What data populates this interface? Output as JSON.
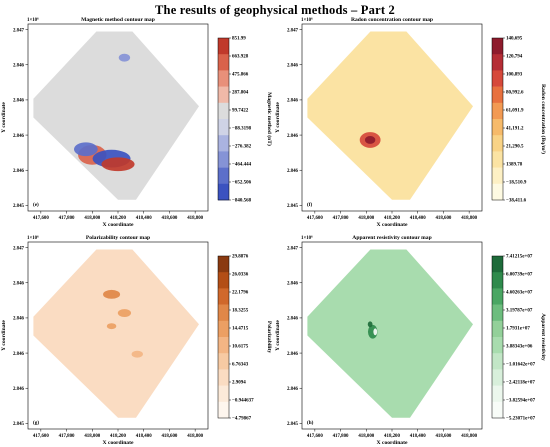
{
  "page": {
    "title": "The results of geophysical methods – Part 2"
  },
  "chart_data": [
    {
      "type": "heatmap",
      "panel_label": "(e)",
      "title": "Magnetic method contour map",
      "xlabel": "X coordinate",
      "ylabel": "Y coordinate",
      "y_multiplier": "1×10⁶",
      "x_ticks": [
        "417,600",
        "417,800",
        "418,000",
        "418,200",
        "418,400",
        "418,600",
        "418,800"
      ],
      "y_ticks": [
        "2.847",
        "2.846",
        "2.846",
        "2.846",
        "2.846",
        "2.845"
      ],
      "xlim": [
        417500,
        418900
      ],
      "colorbar_label": "Magnetic method (nT)",
      "colorbar_ticks": [
        "851.99",
        "663.928",
        "475.866",
        "287.804",
        "99.7422",
        "−88.3198",
        "−276.382",
        "−464.444",
        "−652.506",
        "−840.568"
      ],
      "colorbar_colors": [
        "#c0392b",
        "#d9624b",
        "#e8907a",
        "#f0b9a8",
        "#dcdcdc",
        "#cfd3e6",
        "#aab3e0",
        "#8593d6",
        "#5c6fca",
        "#3b52c0"
      ],
      "background_color": "#dcdcdc",
      "anomalies": [
        {
          "x": 418000,
          "y_frac": 0.3,
          "rx": 30,
          "ry": 20,
          "color": "#d9624b"
        },
        {
          "x": 418150,
          "y_frac": 0.28,
          "rx": 40,
          "ry": 18,
          "color": "#3b52c0"
        },
        {
          "x": 417950,
          "y_frac": 0.33,
          "rx": 25,
          "ry": 14,
          "color": "#5c6fca"
        },
        {
          "x": 418200,
          "y_frac": 0.25,
          "rx": 35,
          "ry": 14,
          "color": "#c0392b"
        },
        {
          "x": 418250,
          "y_frac": 0.82,
          "rx": 12,
          "ry": 8,
          "color": "#8593d6"
        }
      ]
    },
    {
      "type": "heatmap",
      "panel_label": "(f)",
      "title": "Radon concentration contour map",
      "xlabel": "X coordinate",
      "ylabel": "Y coordinate",
      "y_multiplier": "1×10⁶",
      "x_ticks": [
        "417,600",
        "417,800",
        "418,000",
        "418,200",
        "418,400",
        "418,600",
        "418,800"
      ],
      "y_ticks": [
        "2.847",
        "2.846",
        "2.846",
        "2.846",
        "2.846",
        "2.845"
      ],
      "xlim": [
        417500,
        418900
      ],
      "colorbar_label": "Radon concentration (Bq/m³)",
      "colorbar_ticks": [
        "140,695",
        "120,794",
        "100,893",
        "80,992.6",
        "61,091.9",
        "41,191.2",
        "21,290.5",
        "1389.78",
        "−18,510.9",
        "−38,411.6"
      ],
      "colorbar_colors": [
        "#8e1b2c",
        "#b52d35",
        "#d6493b",
        "#e8713f",
        "#f29a53",
        "#f6ba6a",
        "#f9d386",
        "#fbe3a3",
        "#fdf0c4",
        "#fefae2"
      ],
      "background_color": "#fbe3a3",
      "anomalies": [
        {
          "x": 418030,
          "y_frac": 0.38,
          "rx": 22,
          "ry": 16,
          "color": "#d6493b"
        },
        {
          "x": 418030,
          "y_frac": 0.38,
          "rx": 11,
          "ry": 8,
          "color": "#8e1b2c"
        }
      ]
    },
    {
      "type": "heatmap",
      "panel_label": "(g)",
      "title": "Polarizability contour map",
      "xlabel": "X coordinate",
      "ylabel": "Y coordinate",
      "y_multiplier": "1×10⁶",
      "x_ticks": [
        "417,600",
        "417,800",
        "418,000",
        "418,200",
        "418,400",
        "418,600",
        "418,800"
      ],
      "y_ticks": [
        "2.847",
        "2.846",
        "2.846",
        "2.846",
        "2.846",
        "2.845"
      ],
      "xlim": [
        417500,
        418900
      ],
      "colorbar_label": "Polarizability",
      "colorbar_ticks": [
        "29.8876",
        "26.0336",
        "22.1796",
        "18.3255",
        "14.4715",
        "10.6175",
        "6.76343",
        "2.9094",
        "−0.944637",
        "−4.79867"
      ],
      "colorbar_colors": [
        "#8a3a10",
        "#b34e16",
        "#d0682b",
        "#e08748",
        "#ec9f63",
        "#f3b584",
        "#f7caa3",
        "#fadcc2",
        "#fcead9",
        "#fef6ee"
      ],
      "background_color": "#fadcc2",
      "anomalies": [
        {
          "x": 417750,
          "y_frac": 0.3,
          "rx": 16,
          "ry": 11,
          "color": "#b34e16"
        },
        {
          "x": 418150,
          "y_frac": 0.72,
          "rx": 18,
          "ry": 9,
          "color": "#e08748"
        },
        {
          "x": 418250,
          "y_frac": 0.62,
          "rx": 14,
          "ry": 8,
          "color": "#ec9f63"
        },
        {
          "x": 418150,
          "y_frac": 0.55,
          "rx": 10,
          "ry": 6,
          "color": "#ec9f63"
        },
        {
          "x": 418350,
          "y_frac": 0.4,
          "rx": 12,
          "ry": 7,
          "color": "#f3b584"
        }
      ]
    },
    {
      "type": "heatmap",
      "panel_label": "(h)",
      "title": "Apparent resistivity contour map",
      "xlabel": "X coordinate",
      "ylabel": "Y coordinate",
      "y_multiplier": "1×10⁶",
      "x_ticks": [
        "417,600",
        "417,800",
        "418,000",
        "418,200",
        "418,400",
        "418,600",
        "418,800"
      ],
      "y_ticks": [
        "2.847",
        "2.846",
        "2.846",
        "2.846",
        "2.846",
        "2.845"
      ],
      "xlim": [
        417500,
        418900
      ],
      "colorbar_label": "Apparent resistivity",
      "colorbar_ticks": [
        "7.41215e+07",
        "6.00739e+07",
        "4.60263e+07",
        "3.19787e+07",
        "1.7931e+07",
        "3.88343e+06",
        "−1.01642e+07",
        "−2.42118e+07",
        "−3.82594e+07",
        "−5.23071e+07"
      ],
      "colorbar_colors": [
        "#1e6b3a",
        "#2f8a4c",
        "#4aa663",
        "#6dbd7e",
        "#93d099",
        "#a8dcae",
        "#c2e6c6",
        "#d8efdb",
        "#ecf7ed",
        "#f8fcf8"
      ],
      "background_color": "#a8dcae",
      "anomalies": [
        {
          "x": 418050,
          "y_frac": 0.52,
          "rx": 10,
          "ry": 14,
          "color": "#2f8a4c"
        },
        {
          "x": 418070,
          "y_frac": 0.52,
          "rx": 4,
          "ry": 7,
          "color": "#f8fcf8"
        },
        {
          "x": 418030,
          "y_frac": 0.56,
          "rx": 5,
          "ry": 6,
          "color": "#1e6b3a"
        }
      ]
    }
  ]
}
